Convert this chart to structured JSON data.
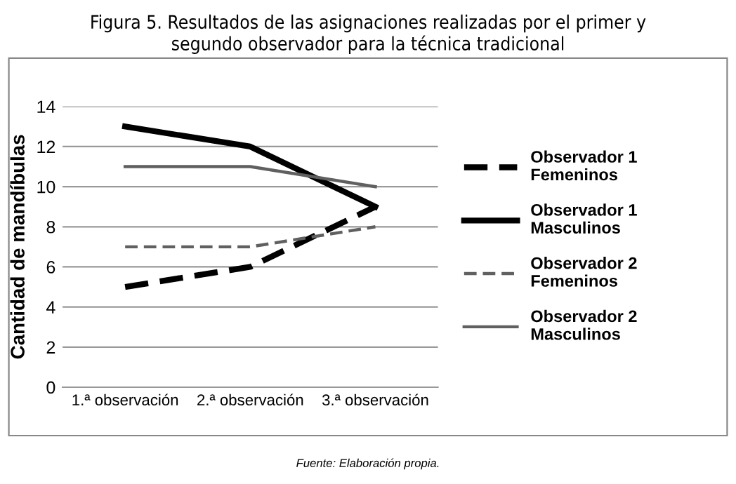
{
  "chart_data": {
    "type": "line",
    "title": "Figura 5. Resultados de las asignaciones realizadas por el primer y\nsegundo observador para la técnica tradicional",
    "ylabel": "Cantidad de mandíbulas",
    "categories": [
      "1.ª observación",
      "2.ª observación",
      "3.ª observación"
    ],
    "series": [
      {
        "name": "Observador 1\nFemeninos",
        "color": "#000000",
        "line_style": "dashed",
        "values": [
          5,
          6,
          9
        ]
      },
      {
        "name": "Observador 1\nMasculinos",
        "color": "#000000",
        "line_style": "solid",
        "values": [
          13,
          12,
          9
        ]
      },
      {
        "name": "Observador 2\nFemeninos",
        "color": "#606060",
        "line_style": "dashed",
        "values": [
          7,
          7,
          8
        ]
      },
      {
        "name": "Observador 2\nMasculinos",
        "color": "#606060",
        "line_style": "solid",
        "values": [
          11,
          11,
          10
        ]
      }
    ],
    "ylim": [
      0,
      14
    ],
    "yticks": [
      0,
      2,
      4,
      6,
      8,
      10,
      12,
      14
    ],
    "grid": "y",
    "legend": "right",
    "marker": "none",
    "annotations": [
      "Fuente: Elaboración propia."
    ]
  }
}
